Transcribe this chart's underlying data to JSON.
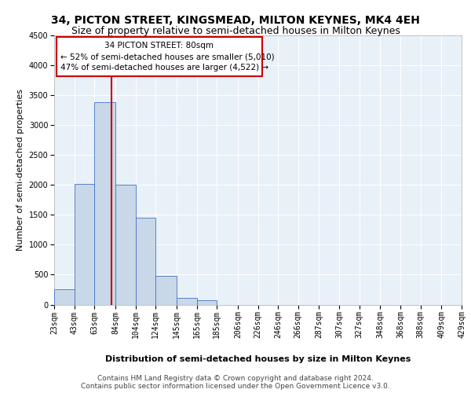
{
  "title": "34, PICTON STREET, KINGSMEAD, MILTON KEYNES, MK4 4EH",
  "subtitle": "Size of property relative to semi-detached houses in Milton Keynes",
  "xlabel": "Distribution of semi-detached houses by size in Milton Keynes",
  "ylabel": "Number of semi-detached properties",
  "footnote1": "Contains HM Land Registry data © Crown copyright and database right 2024.",
  "footnote2": "Contains public sector information licensed under the Open Government Licence v3.0.",
  "property_label": "34 PICTON STREET: 80sqm",
  "pct_smaller": 52,
  "count_smaller": 5010,
  "pct_larger": 47,
  "count_larger": 4522,
  "bar_left_edges": [
    23,
    43,
    63,
    84,
    104,
    124,
    145,
    165,
    185,
    206,
    226,
    246,
    266,
    287,
    307,
    327,
    348,
    368,
    388,
    409
  ],
  "bar_heights": [
    250,
    2020,
    3380,
    2000,
    1450,
    480,
    110,
    70,
    0,
    0,
    0,
    0,
    0,
    0,
    0,
    0,
    0,
    0,
    0,
    0
  ],
  "bin_labels": [
    "23sqm",
    "43sqm",
    "63sqm",
    "84sqm",
    "104sqm",
    "124sqm",
    "145sqm",
    "165sqm",
    "185sqm",
    "206sqm",
    "226sqm",
    "246sqm",
    "266sqm",
    "287sqm",
    "307sqm",
    "327sqm",
    "348sqm",
    "368sqm",
    "388sqm",
    "409sqm",
    "429sqm"
  ],
  "xlim": [
    23,
    429
  ],
  "ylim": [
    0,
    4500
  ],
  "yticks": [
    0,
    500,
    1000,
    1500,
    2000,
    2500,
    3000,
    3500,
    4000,
    4500
  ],
  "bar_color": "#c8d8e8",
  "bar_edge_color": "#4472c4",
  "bg_color": "#e8f0f8",
  "grid_color": "#ffffff",
  "vline_x": 80,
  "vline_color": "#cc0000",
  "annotation_box_color": "#cc0000",
  "title_fontsize": 10,
  "subtitle_fontsize": 9,
  "axis_label_fontsize": 8,
  "tick_fontsize": 7,
  "annotation_fontsize": 7.5,
  "footnote_fontsize": 6.5
}
